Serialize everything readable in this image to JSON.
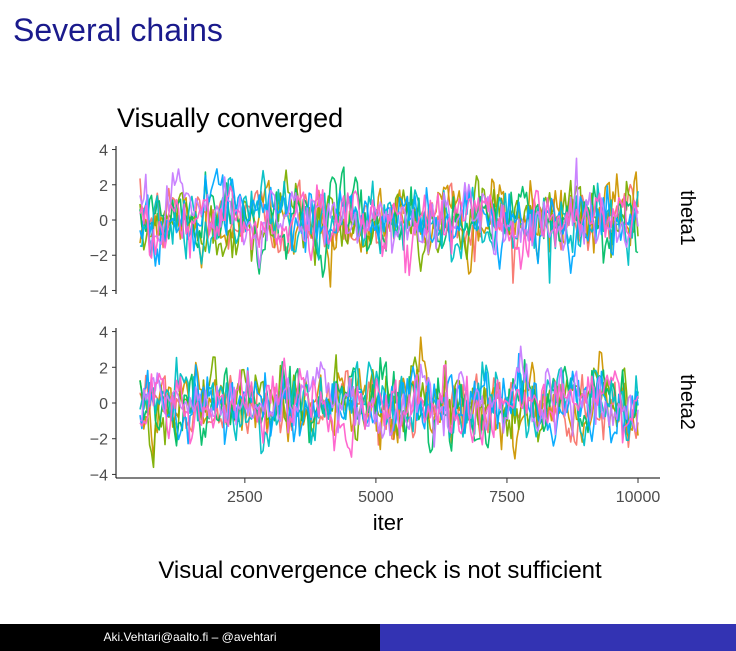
{
  "slide": {
    "title": "Several chains",
    "caption": "Visual convergence check is not sufficient",
    "footer": "Aki.Vehtari@aalto.fi – @avehtari"
  },
  "chart_data": {
    "type": "line",
    "title": "Visually converged",
    "xlabel": "iter",
    "ylabel": "",
    "xlim": [
      500,
      10000
    ],
    "ylim": [
      -4.2,
      4.2
    ],
    "x_ticks": [
      2500,
      5000,
      7500,
      10000
    ],
    "y_ticks": [
      -4,
      -2,
      0,
      2,
      4
    ],
    "y_tick_labels": [
      "−4",
      "−2",
      "0",
      "2",
      "4"
    ],
    "grid": false,
    "legend": "none",
    "series_colors": [
      "#f8766d",
      "#cd9600",
      "#7cae00",
      "#00be67",
      "#00bfc4",
      "#00a9ff",
      "#c77cff",
      "#ff61cc"
    ],
    "panels": [
      {
        "label": "theta1",
        "min_observed": -3.8,
        "max_observed": 3.5,
        "approx_mean": 0,
        "approx_sd": 1
      },
      {
        "label": "theta2",
        "min_observed": -3.9,
        "max_observed": 4.0,
        "approx_mean": 0,
        "approx_sd": 1
      }
    ]
  }
}
